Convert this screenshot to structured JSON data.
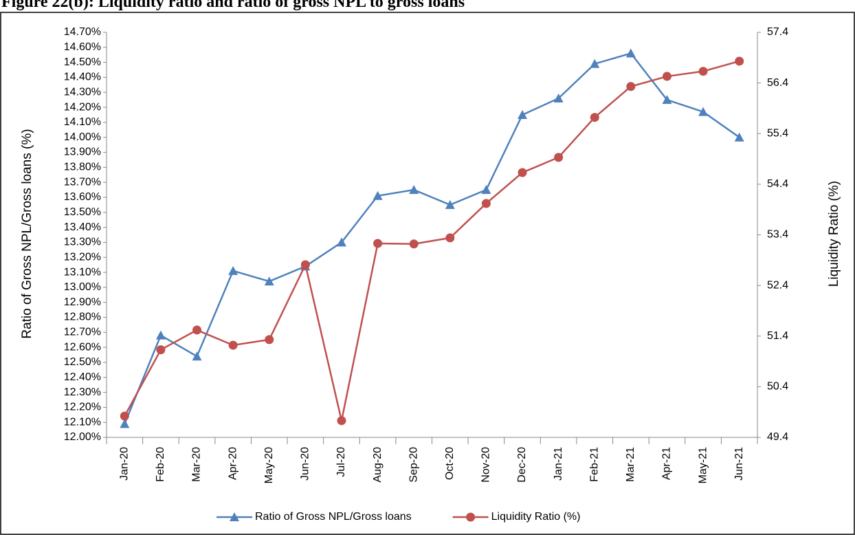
{
  "chart_data": {
    "type": "line",
    "title": "Figure 22(b): Liquidity ratio and ratio of gross NPL to gross loans",
    "y_label": "Ratio of Gross NPL/Gross loans (%)",
    "y2_label": "Liquidity Ratio (%)",
    "categories": [
      "Jan-20",
      "Feb-20",
      "Mar-20",
      "Apr-20",
      "May-20",
      "Jun-20",
      "Jul-20",
      "Aug-20",
      "Sep-20",
      "Oct-20",
      "Nov-20",
      "Dec-20",
      "Jan-21",
      "Feb-21",
      "Mar-21",
      "Apr-21",
      "May-21",
      "Jun-21"
    ],
    "series": [
      {
        "name": "Ratio of Gross NPL/Gross loans",
        "color": "#4f81bd",
        "marker": "triangle",
        "axis": "y",
        "values": [
          12.09,
          12.68,
          12.54,
          13.11,
          13.04,
          13.14,
          13.3,
          13.61,
          13.65,
          13.55,
          13.65,
          14.15,
          14.26,
          14.49,
          14.56,
          14.25,
          14.17,
          14.0
        ]
      },
      {
        "name": "Liquidity Ratio (%)",
        "color": "#c0504d",
        "marker": "circle",
        "axis": "y2",
        "values": [
          49.82,
          51.13,
          51.52,
          51.22,
          51.33,
          52.81,
          49.73,
          53.23,
          53.22,
          53.34,
          54.02,
          54.63,
          54.93,
          55.72,
          56.33,
          56.53,
          56.63,
          56.83
        ]
      }
    ],
    "ylim": [
      12.0,
      14.7
    ],
    "yticks": [
      {
        "value": 12.0,
        "label": "12.00%"
      },
      {
        "value": 12.1,
        "label": "12.10%"
      },
      {
        "value": 12.2,
        "label": "12.20%"
      },
      {
        "value": 12.3,
        "label": "12.30%"
      },
      {
        "value": 12.4,
        "label": "12.40%"
      },
      {
        "value": 12.5,
        "label": "12.50%"
      },
      {
        "value": 12.6,
        "label": "12.60%"
      },
      {
        "value": 12.7,
        "label": "12.70%"
      },
      {
        "value": 12.8,
        "label": "12.80%"
      },
      {
        "value": 12.9,
        "label": "12.90%"
      },
      {
        "value": 13.0,
        "label": "13.00%"
      },
      {
        "value": 13.1,
        "label": "13.10%"
      },
      {
        "value": 13.2,
        "label": "13.20%"
      },
      {
        "value": 13.3,
        "label": "13.30%"
      },
      {
        "value": 13.4,
        "label": "13.40%"
      },
      {
        "value": 13.5,
        "label": "13.50%"
      },
      {
        "value": 13.6,
        "label": "13.60%"
      },
      {
        "value": 13.7,
        "label": "13.70%"
      },
      {
        "value": 13.8,
        "label": "13.80%"
      },
      {
        "value": 13.9,
        "label": "13.90%"
      },
      {
        "value": 14.0,
        "label": "14.00%"
      },
      {
        "value": 14.1,
        "label": "14.10%"
      },
      {
        "value": 14.2,
        "label": "14.20%"
      },
      {
        "value": 14.3,
        "label": "14.30%"
      },
      {
        "value": 14.4,
        "label": "14.40%"
      },
      {
        "value": 14.5,
        "label": "14.50%"
      },
      {
        "value": 14.6,
        "label": "14.60%"
      },
      {
        "value": 14.7,
        "label": "14.70%"
      }
    ],
    "y2lim": [
      49.4,
      57.4
    ],
    "y2ticks": [
      49.4,
      50.4,
      51.4,
      52.4,
      53.4,
      54.4,
      55.4,
      56.4,
      57.4
    ],
    "grid": false,
    "legend": "bottom"
  }
}
